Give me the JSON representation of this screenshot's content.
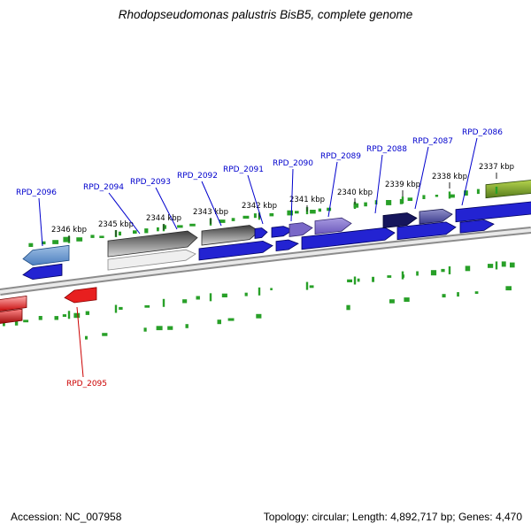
{
  "title": "Rhodopseudomonas palustris BisB5, complete genome",
  "footer": {
    "accession": "Accession: NC_007958",
    "summary": "Topology: circular; Length: 4,892,717 bp; Genes: 4,470"
  },
  "colors": {
    "label_blue": "#0000cd",
    "label_red": "#cc0000",
    "track_green": "#28a028",
    "backbone": "#8c8c8c",
    "backbone_highlight": "#e9e9e9",
    "tick_text": "#000000"
  },
  "ticks": [
    {
      "label": "2346 kbp"
    },
    {
      "label": "2345 kbp"
    },
    {
      "label": "2344 kbp"
    },
    {
      "label": "2343 kbp"
    },
    {
      "label": "2342 kbp"
    },
    {
      "label": "2341 kbp"
    },
    {
      "label": "2340 kbp"
    },
    {
      "label": "2339 kbp"
    },
    {
      "label": "2338 kbp"
    },
    {
      "label": "2337 kbp"
    }
  ],
  "gene_labels": [
    {
      "text": "RPD_2096",
      "color": "#0000cd"
    },
    {
      "text": "RPD_2094",
      "color": "#0000cd"
    },
    {
      "text": "RPD_2093",
      "color": "#0000cd"
    },
    {
      "text": "RPD_2092",
      "color": "#0000cd"
    },
    {
      "text": "RPD_2091",
      "color": "#0000cd"
    },
    {
      "text": "RPD_2090",
      "color": "#0000cd"
    },
    {
      "text": "RPD_2089",
      "color": "#0000cd"
    },
    {
      "text": "RPD_2088",
      "color": "#0000cd"
    },
    {
      "text": "RPD_2087",
      "color": "#0000cd"
    },
    {
      "text": "RPD_2086",
      "color": "#0000cd"
    },
    {
      "text": "RPD_2095",
      "color": "#cc0000"
    }
  ],
  "features": [
    {
      "name": "RPD_2096",
      "strand": "reverse",
      "color_top": "#9fc0e4",
      "color_bottom": "#4d7fc0",
      "stroke": "#1c4a80"
    },
    {
      "name": "",
      "strand": "reverse",
      "color": "#2323d2",
      "stroke": "#000060"
    },
    {
      "name": "RPD_2094",
      "strand": "forward",
      "color_top": "#3f3f3f",
      "color_bottom": "#d6d6d6",
      "stroke": "#2a2a2a"
    },
    {
      "name": "RPD_2093",
      "strand": "forward",
      "color": "#efefef",
      "stroke": "#8a8a8a"
    },
    {
      "name": "RPD_2092",
      "strand": "forward",
      "color_top": "#3f3f3f",
      "color_bottom": "#d6d6d6",
      "stroke": "#2a2a2a"
    },
    {
      "name": "",
      "strand": "forward",
      "color": "#2323d2",
      "stroke": "#000060"
    },
    {
      "name": "",
      "strand": "forward",
      "color": "#2323d2",
      "stroke": "#000060"
    },
    {
      "name": "RPD_2091",
      "strand": "forward",
      "color": "#2323d2",
      "stroke": "#000060"
    },
    {
      "name": "",
      "strand": "forward",
      "color": "#2323d2",
      "stroke": "#000060"
    },
    {
      "name": "RPD_2090",
      "strand": "forward",
      "color": "#7a68c8",
      "stroke": "#32266e"
    },
    {
      "name": "RPD_2089",
      "strand": "forward",
      "color_top": "#a79ae0",
      "color_bottom": "#6c59bd",
      "stroke": "#32266e"
    },
    {
      "name": "",
      "strand": "forward",
      "color": "#2323d2",
      "stroke": "#000060"
    },
    {
      "name": "",
      "strand": "forward",
      "color": "#2323d2",
      "stroke": "#000060"
    },
    {
      "name": "RPD_2088",
      "strand": "forward",
      "color": "#16165c",
      "stroke": "#000030"
    },
    {
      "name": "RPD_2087",
      "strand": "forward",
      "color_top": "#8f8fc8",
      "color_bottom": "#3c3c8e",
      "stroke": "#1a1a50"
    },
    {
      "name": "RPD_2086",
      "strand": "forward",
      "color": "#2323d2",
      "stroke": "#000060"
    },
    {
      "name": "",
      "strand": "forward",
      "color": "#2323d2",
      "stroke": "#000060"
    },
    {
      "name": "",
      "strand": "forward",
      "color_top": "#b6d44e",
      "color_bottom": "#567c1c",
      "stroke": "#2e4a0c"
    },
    {
      "name": "",
      "strand": "reverse",
      "color_top": "#ffb0b0",
      "color_bottom": "#c40000",
      "stroke": "#7a0000"
    },
    {
      "name": "",
      "strand": "reverse",
      "color_top": "#ff8888",
      "color_bottom": "#990000",
      "stroke": "#7a0000"
    },
    {
      "name": "RPD_2095",
      "strand": "reverse",
      "color": "#e81f1f",
      "stroke": "#8a0000"
    }
  ]
}
